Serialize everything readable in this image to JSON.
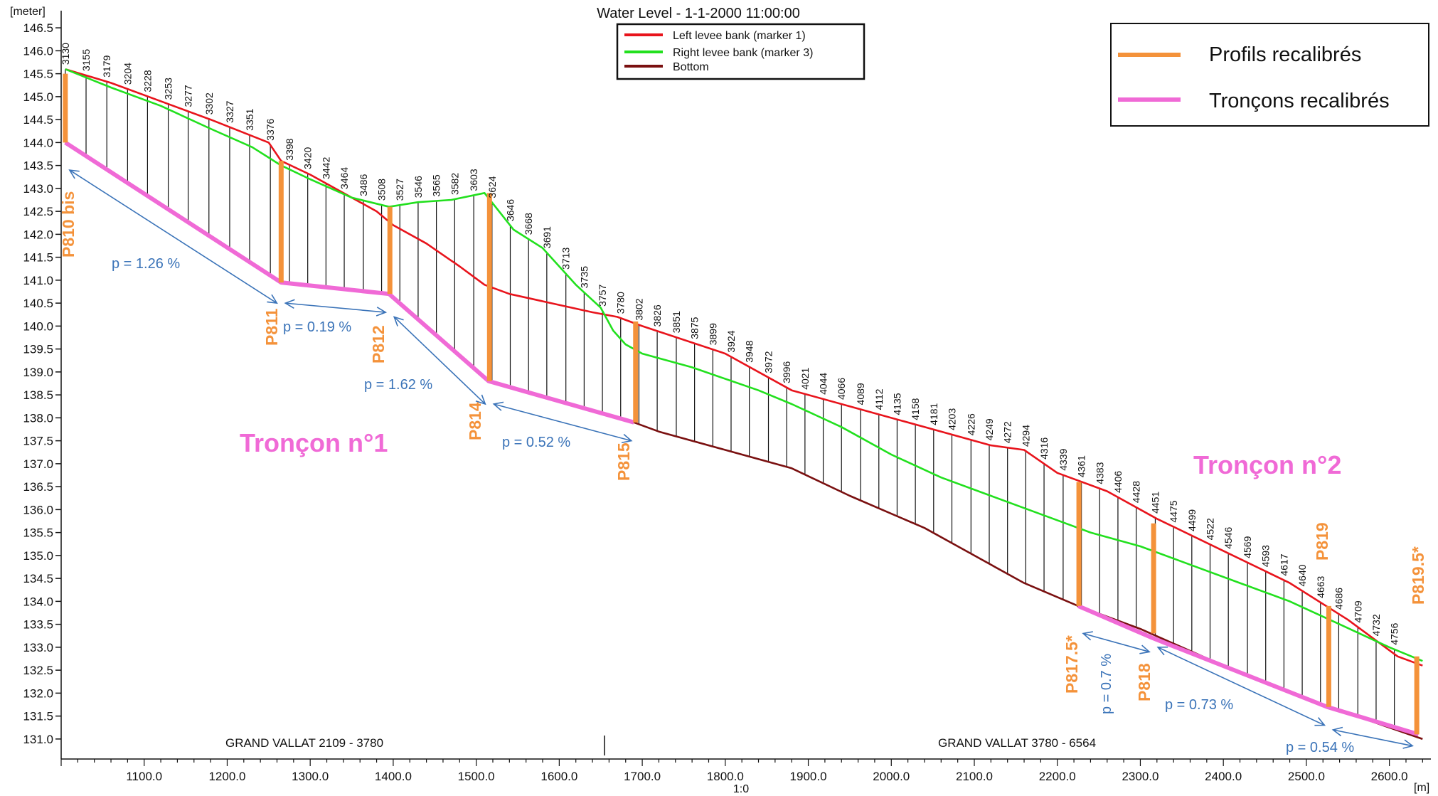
{
  "chart_data": {
    "type": "line",
    "title": "Water Level - 1-1-2000 11:00:00",
    "ylabel": "[meter]",
    "xlabel": "[m]",
    "scale_label": "1:0",
    "xlim": [
      1000,
      2650
    ],
    "ylim": [
      130.75,
      146.75
    ],
    "grid": false,
    "y_ticks": [
      "131.0",
      "131.5",
      "132.0",
      "132.5",
      "133.0",
      "133.5",
      "134.0",
      "134.5",
      "135.0",
      "135.5",
      "136.0",
      "136.5",
      "137.0",
      "137.5",
      "138.0",
      "138.5",
      "139.0",
      "139.5",
      "140.0",
      "140.5",
      "141.0",
      "141.5",
      "142.0",
      "142.5",
      "143.0",
      "143.5",
      "144.0",
      "144.5",
      "145.0",
      "145.5",
      "146.0",
      "146.5"
    ],
    "x_ticks": [
      "1100.0",
      "1200.0",
      "1300.0",
      "1400.0",
      "1500.0",
      "1600.0",
      "1700.0",
      "1800.0",
      "1900.0",
      "2000.0",
      "2100.0",
      "2200.0",
      "2300.0",
      "2400.0",
      "2500.0",
      "2600.0"
    ],
    "branches": [
      {
        "label": "GRAND VALLAT  2109 - 3780"
      },
      {
        "label": "GRAND VALLAT  3780 - 6564"
      }
    ],
    "legend": {
      "position": "top-center",
      "entries": [
        {
          "name": "Left levee bank  (marker 1)",
          "color": "#e8141c"
        },
        {
          "name": "Right levee bank  (marker 3)",
          "color": "#22e01e"
        },
        {
          "name": "Bottom",
          "color": "#7a1010"
        }
      ]
    },
    "legend2": {
      "position": "top-right",
      "entries": [
        {
          "name": "Profils recalibrés",
          "color": "#f4923a"
        },
        {
          "name": "Tronçons recalibrés",
          "color": "#f06ad6"
        }
      ]
    },
    "chainages": [
      {
        "x": 1005,
        "label": "3130"
      },
      {
        "x": 1030,
        "label": "3155"
      },
      {
        "x": 1055,
        "label": "3179"
      },
      {
        "x": 1080,
        "label": "3204"
      },
      {
        "x": 1104,
        "label": "3228"
      },
      {
        "x": 1129,
        "label": "3253"
      },
      {
        "x": 1153,
        "label": "3277"
      },
      {
        "x": 1178,
        "label": "3302"
      },
      {
        "x": 1203,
        "label": "3327"
      },
      {
        "x": 1227,
        "label": "3351"
      },
      {
        "x": 1252,
        "label": "3376"
      },
      {
        "x": 1275,
        "label": "3398"
      },
      {
        "x": 1297,
        "label": "3420"
      },
      {
        "x": 1319,
        "label": "3442"
      },
      {
        "x": 1341,
        "label": "3464"
      },
      {
        "x": 1364,
        "label": "3486"
      },
      {
        "x": 1386,
        "label": "3508"
      },
      {
        "x": 1408,
        "label": "3527"
      },
      {
        "x": 1430,
        "label": "3546"
      },
      {
        "x": 1452,
        "label": "3565"
      },
      {
        "x": 1474,
        "label": "3582"
      },
      {
        "x": 1497,
        "label": "3603"
      },
      {
        "x": 1519,
        "label": "3624"
      },
      {
        "x": 1541,
        "label": "3646"
      },
      {
        "x": 1563,
        "label": "3668"
      },
      {
        "x": 1585,
        "label": "3691"
      },
      {
        "x": 1608,
        "label": "3713"
      },
      {
        "x": 1630,
        "label": "3735"
      },
      {
        "x": 1652,
        "label": "3757"
      },
      {
        "x": 1674,
        "label": "3780"
      },
      {
        "x": 1696,
        "label": "3802"
      },
      {
        "x": 1718,
        "label": "3826"
      },
      {
        "x": 1741,
        "label": "3851"
      },
      {
        "x": 1763,
        "label": "3875"
      },
      {
        "x": 1785,
        "label": "3899"
      },
      {
        "x": 1807,
        "label": "3924"
      },
      {
        "x": 1829,
        "label": "3948"
      },
      {
        "x": 1852,
        "label": "3972"
      },
      {
        "x": 1874,
        "label": "3996"
      },
      {
        "x": 1896,
        "label": "4021"
      },
      {
        "x": 1918,
        "label": "4044"
      },
      {
        "x": 1940,
        "label": "4066"
      },
      {
        "x": 1963,
        "label": "4089"
      },
      {
        "x": 1985,
        "label": "4112"
      },
      {
        "x": 2007,
        "label": "4135"
      },
      {
        "x": 2029,
        "label": "4158"
      },
      {
        "x": 2051,
        "label": "4181"
      },
      {
        "x": 2073,
        "label": "4203"
      },
      {
        "x": 2096,
        "label": "4226"
      },
      {
        "x": 2118,
        "label": "4249"
      },
      {
        "x": 2140,
        "label": "4272"
      },
      {
        "x": 2162,
        "label": "4294"
      },
      {
        "x": 2184,
        "label": "4316"
      },
      {
        "x": 2207,
        "label": "4339"
      },
      {
        "x": 2229,
        "label": "4361"
      },
      {
        "x": 2251,
        "label": "4383"
      },
      {
        "x": 2273,
        "label": "4406"
      },
      {
        "x": 2295,
        "label": "4428"
      },
      {
        "x": 2318,
        "label": "4451"
      },
      {
        "x": 2340,
        "label": "4475"
      },
      {
        "x": 2362,
        "label": "4499"
      },
      {
        "x": 2384,
        "label": "4522"
      },
      {
        "x": 2406,
        "label": "4546"
      },
      {
        "x": 2429,
        "label": "4569"
      },
      {
        "x": 2451,
        "label": "4593"
      },
      {
        "x": 2473,
        "label": "4617"
      },
      {
        "x": 2495,
        "label": "4640"
      },
      {
        "x": 2517,
        "label": "4663"
      },
      {
        "x": 2539,
        "label": "4686"
      },
      {
        "x": 2562,
        "label": "4709"
      },
      {
        "x": 2584,
        "label": "4732"
      },
      {
        "x": 2606,
        "label": "4756"
      }
    ],
    "series": [
      {
        "name": "Left levee bank  (marker 1)",
        "color": "#e8141c",
        "points": [
          [
            1005,
            145.6
          ],
          [
            1060,
            145.3
          ],
          [
            1120,
            144.9
          ],
          [
            1180,
            144.5
          ],
          [
            1250,
            144.0
          ],
          [
            1265,
            143.6
          ],
          [
            1300,
            143.3
          ],
          [
            1340,
            142.9
          ],
          [
            1380,
            142.5
          ],
          [
            1400,
            142.2
          ],
          [
            1440,
            141.8
          ],
          [
            1480,
            141.3
          ],
          [
            1510,
            140.9
          ],
          [
            1540,
            140.7
          ],
          [
            1590,
            140.5
          ],
          [
            1640,
            140.3
          ],
          [
            1670,
            140.2
          ],
          [
            1700,
            140.0
          ],
          [
            1800,
            139.4
          ],
          [
            1880,
            138.6
          ],
          [
            1960,
            138.2
          ],
          [
            2040,
            137.8
          ],
          [
            2120,
            137.4
          ],
          [
            2160,
            137.3
          ],
          [
            2200,
            136.8
          ],
          [
            2260,
            136.4
          ],
          [
            2320,
            135.8
          ],
          [
            2400,
            135.1
          ],
          [
            2480,
            134.4
          ],
          [
            2550,
            133.6
          ],
          [
            2610,
            132.8
          ],
          [
            2640,
            132.6
          ]
        ]
      },
      {
        "name": "Right levee bank  (marker 3)",
        "color": "#22e01e",
        "points": [
          [
            1005,
            145.6
          ],
          [
            1060,
            145.2
          ],
          [
            1120,
            144.8
          ],
          [
            1180,
            144.3
          ],
          [
            1230,
            143.9
          ],
          [
            1265,
            143.5
          ],
          [
            1300,
            143.2
          ],
          [
            1350,
            142.8
          ],
          [
            1395,
            142.6
          ],
          [
            1430,
            142.7
          ],
          [
            1470,
            142.75
          ],
          [
            1510,
            142.9
          ],
          [
            1545,
            142.1
          ],
          [
            1580,
            141.7
          ],
          [
            1620,
            140.9
          ],
          [
            1650,
            140.4
          ],
          [
            1665,
            139.9
          ],
          [
            1680,
            139.6
          ],
          [
            1700,
            139.4
          ],
          [
            1760,
            139.1
          ],
          [
            1840,
            138.6
          ],
          [
            1880,
            138.3
          ],
          [
            1940,
            137.8
          ],
          [
            2000,
            137.2
          ],
          [
            2060,
            136.7
          ],
          [
            2120,
            136.3
          ],
          [
            2180,
            135.9
          ],
          [
            2240,
            135.5
          ],
          [
            2300,
            135.2
          ],
          [
            2360,
            134.8
          ],
          [
            2420,
            134.4
          ],
          [
            2480,
            134.0
          ],
          [
            2540,
            133.5
          ],
          [
            2600,
            133.0
          ],
          [
            2640,
            132.7
          ]
        ]
      },
      {
        "name": "Bottom",
        "color": "#7a1010",
        "points": [
          [
            1005,
            144.0
          ],
          [
            1265,
            140.95
          ],
          [
            1395,
            140.7
          ],
          [
            1515,
            138.8
          ],
          [
            1690,
            137.9
          ],
          [
            1720,
            137.7
          ],
          [
            1800,
            137.3
          ],
          [
            1880,
            136.9
          ],
          [
            1950,
            136.3
          ],
          [
            2040,
            135.6
          ],
          [
            2100,
            135.0
          ],
          [
            2160,
            134.4
          ],
          [
            2225,
            133.9
          ],
          [
            2300,
            133.4
          ],
          [
            2400,
            132.6
          ],
          [
            2510,
            131.8
          ],
          [
            2560,
            131.5
          ],
          [
            2600,
            131.25
          ],
          [
            2640,
            131.0
          ]
        ]
      }
    ],
    "recalibrated_sections": {
      "color": "#f06ad6",
      "points": [
        [
          1005,
          144.0
        ],
        [
          1265,
          140.95
        ],
        [
          1395,
          140.7
        ],
        [
          1515,
          138.8
        ],
        [
          1690,
          137.9
        ],
        [
          2225,
          133.9
        ],
        [
          2315,
          133.2
        ],
        [
          2525,
          131.7
        ],
        [
          2635,
          131.1
        ]
      ]
    },
    "recalibrated_profiles": {
      "color": "#f4923a",
      "items": [
        {
          "label": "P810 bis",
          "x": 1005,
          "y_top": 145.5,
          "y_bottom": 144.0
        },
        {
          "label": "P811",
          "x": 1265,
          "y_top": 143.6,
          "y_bottom": 140.95
        },
        {
          "label": "P812",
          "x": 1396,
          "y_top": 142.6,
          "y_bottom": 140.7
        },
        {
          "label": "P814",
          "x": 1516,
          "y_top": 142.9,
          "y_bottom": 138.8
        },
        {
          "label": "P815",
          "x": 1692,
          "y_top": 140.1,
          "y_bottom": 137.9
        },
        {
          "label": "P817.5*",
          "x": 2226,
          "y_top": 136.6,
          "y_bottom": 133.9
        },
        {
          "label": "P818",
          "x": 2316,
          "y_top": 135.7,
          "y_bottom": 133.3
        },
        {
          "label": "P819",
          "x": 2527,
          "y_top": 133.9,
          "y_bottom": 131.7
        },
        {
          "label": "P819.5*",
          "x": 2633,
          "y_top": 132.8,
          "y_bottom": 131.1
        }
      ]
    },
    "slopes": [
      {
        "label": "p = 1.26 %"
      },
      {
        "label": "p = 0.19 %"
      },
      {
        "label": "p = 1.62 %"
      },
      {
        "label": "p = 0.52 %"
      },
      {
        "label": "p = 0.7 %"
      },
      {
        "label": "p = 0.73 %"
      },
      {
        "label": "p = 0.54 %"
      }
    ],
    "sections": [
      {
        "label": "Tronçon n°1"
      },
      {
        "label": "Tronçon n°2"
      }
    ]
  }
}
